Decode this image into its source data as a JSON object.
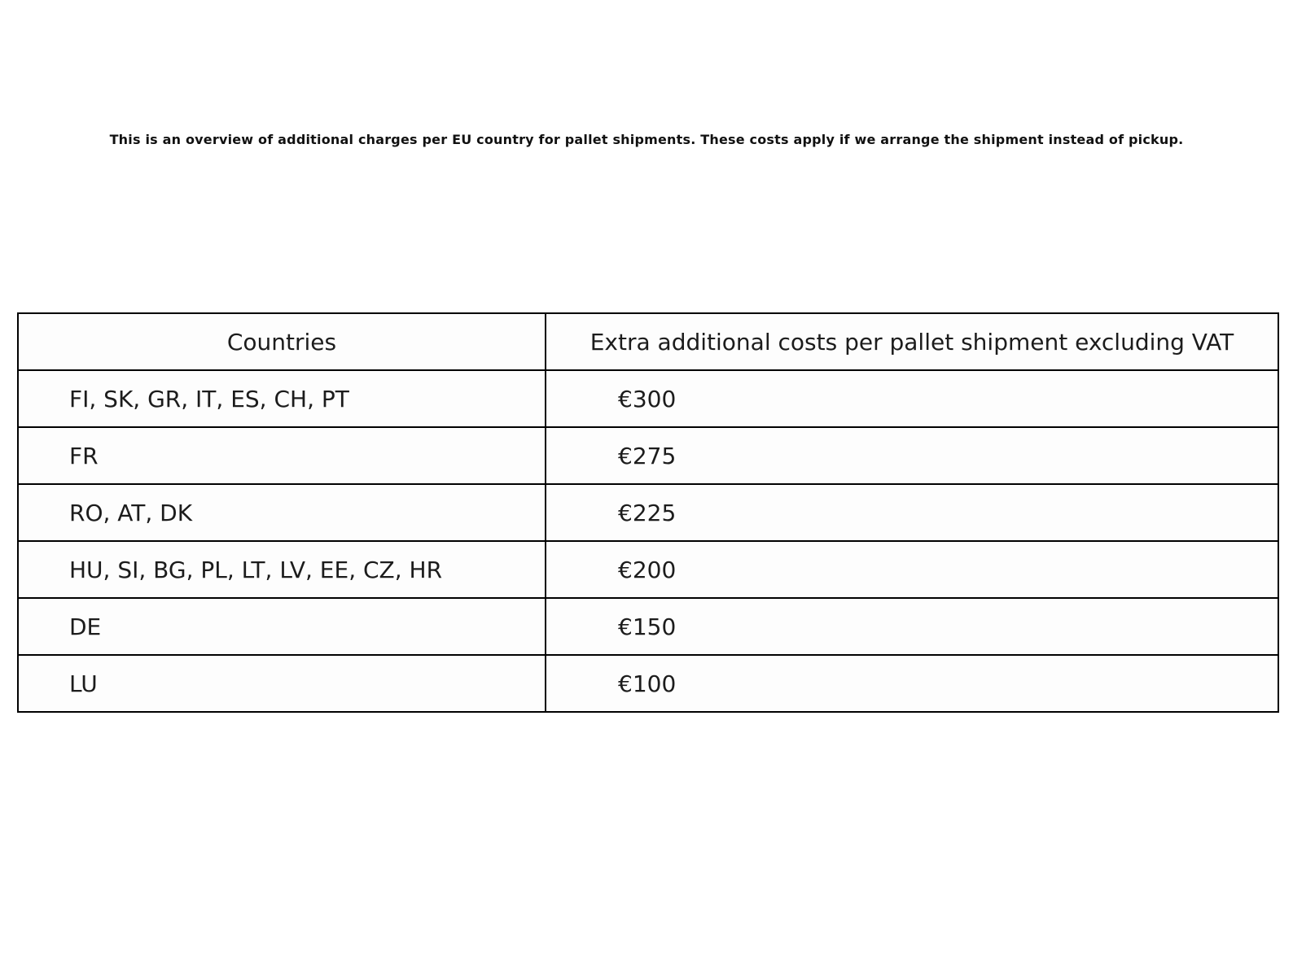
{
  "intro_text": "This is an overview of additional charges per EU country for pallet shipments. These costs apply if we arrange the shipment instead of pickup.",
  "table": {
    "headers": {
      "countries": "Countries",
      "costs": "Extra additional costs per pallet shipment excluding VAT"
    },
    "rows": [
      {
        "countries": "FI, SK, GR, IT, ES, CH, PT",
        "cost": "€300"
      },
      {
        "countries": "FR",
        "cost": "€275"
      },
      {
        "countries": "RO, AT, DK",
        "cost": "€225"
      },
      {
        "countries": "HU, SI, BG, PL, LT, LV, EE, CZ, HR",
        "cost": "€200"
      },
      {
        "countries": "DE",
        "cost": "€150"
      },
      {
        "countries": "LU",
        "cost": "€100"
      }
    ]
  },
  "colors": {
    "background": "#ffffff",
    "border": "#000000",
    "text": "#1a1a1a"
  }
}
